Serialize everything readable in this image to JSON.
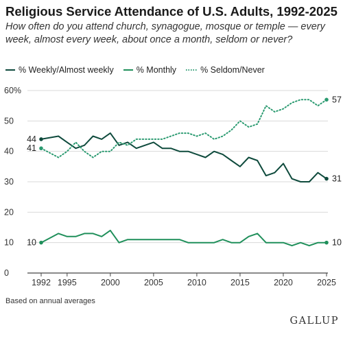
{
  "chart_data": {
    "type": "line",
    "title": "Religious Service Attendance of U.S. Adults, 1992-2025",
    "subtitle": "How often do you attend church, synagogue, mosque or temple — every week, almost every week, about once a month, seldom or never?",
    "footnote": "Based on annual averages",
    "source_logo": "GALLUP",
    "ylim": [
      0,
      60
    ],
    "xlim": [
      1992,
      2025
    ],
    "y_ticks": [
      0,
      10,
      20,
      30,
      40,
      50,
      60
    ],
    "y_tick_labels": [
      "0",
      "10",
      "20",
      "30",
      "40",
      "50",
      "60%"
    ],
    "x_ticks": [
      1992,
      1995,
      2000,
      2005,
      2010,
      2015,
      2020,
      2025
    ],
    "x_tick_labels": [
      "1992",
      "1995",
      "2000",
      "2005",
      "2010",
      "2015",
      "2020",
      "2025"
    ],
    "grid": "horizontal",
    "legend_position": "top-left",
    "x": [
      1992,
      1994,
      1995,
      1996,
      1997,
      1998,
      1999,
      2000,
      2001,
      2002,
      2003,
      2004,
      2005,
      2006,
      2007,
      2008,
      2009,
      2010,
      2011,
      2012,
      2013,
      2014,
      2015,
      2016,
      2017,
      2018,
      2019,
      2020,
      2021,
      2022,
      2023,
      2024,
      2025
    ],
    "series": [
      {
        "name": "% Weekly/Almost weekly",
        "color": "#0e4a3c",
        "style": "solid",
        "start_label": "44",
        "end_label": "31",
        "values": [
          44,
          45,
          43,
          41,
          42,
          45,
          44,
          46,
          42,
          43,
          41,
          42,
          43,
          41,
          41,
          40,
          40,
          39,
          38,
          40,
          39,
          37,
          35,
          38,
          37,
          32,
          33,
          36,
          31,
          30,
          30,
          33,
          31
        ]
      },
      {
        "name": "% Monthly",
        "color": "#1f8f5a",
        "style": "solid",
        "start_label": "10",
        "end_label": "10",
        "values": [
          10,
          13,
          12,
          12,
          13,
          13,
          12,
          14,
          10,
          11,
          11,
          11,
          11,
          11,
          11,
          11,
          10,
          10,
          10,
          10,
          11,
          10,
          10,
          12,
          13,
          10,
          10,
          10,
          9,
          10,
          9,
          10,
          10
        ]
      },
      {
        "name": "% Seldom/Never",
        "color": "#2a9a70",
        "style": "dotted",
        "start_label": "41",
        "end_label": "57",
        "values": [
          41,
          38,
          40,
          43,
          40,
          38,
          40,
          40,
          43,
          42,
          44,
          44,
          44,
          44,
          45,
          46,
          46,
          45,
          46,
          44,
          45,
          47,
          50,
          48,
          49,
          55,
          53,
          54,
          56,
          57,
          57,
          55,
          57
        ]
      }
    ]
  }
}
